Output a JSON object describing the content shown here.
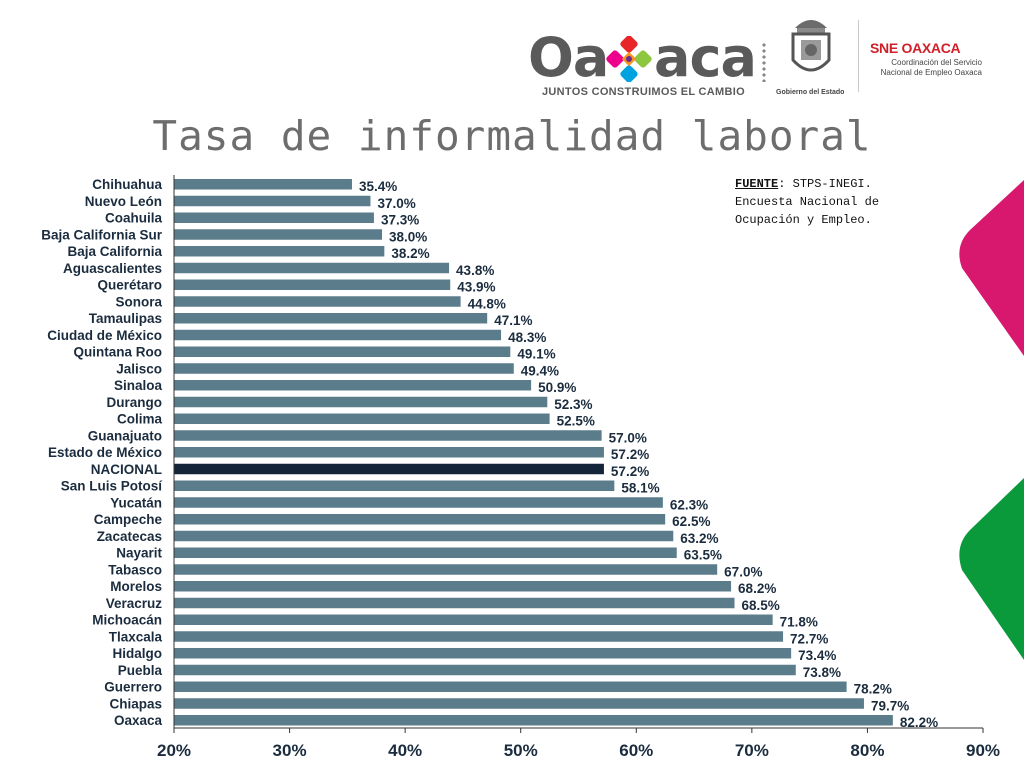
{
  "header": {
    "logo_text_left": "Oa",
    "logo_text_right": "aca",
    "tagline": "JUNTOS CONSTRUIMOS EL CAMBIO",
    "gobierno_label": "Gobierno del Estado",
    "sne_title": "SNE OAXACA",
    "sne_subtitle": "Coordinación del Servicio Nacional de Empleo Oaxaca"
  },
  "title": "Tasa de informalidad laboral",
  "source": {
    "label": "FUENTE",
    "text": ": STPS-INEGI. Encuesta Nacional de Ocupación y Empleo."
  },
  "colors": {
    "bar": "#5b7d8b",
    "highlight": "#14253a",
    "axis": "#333333",
    "accent_magenta": "#d8186f",
    "accent_green": "#0a9a3c"
  },
  "chart_data": {
    "type": "bar",
    "orientation": "horizontal",
    "title": "Tasa de informalidad laboral",
    "categories": [
      "Chihuahua",
      "Nuevo León",
      "Coahuila",
      "Baja California Sur",
      "Baja California",
      "Aguascalientes",
      "Querétaro",
      "Sonora",
      "Tamaulipas",
      "Ciudad de México",
      "Quintana Roo",
      "Jalisco",
      "Sinaloa",
      "Durango",
      "Colima",
      "Guanajuato",
      "Estado de México",
      "NACIONAL",
      "San Luis Potosí",
      "Yucatán",
      "Campeche",
      "Zacatecas",
      "Nayarit",
      "Tabasco",
      "Morelos",
      "Veracruz",
      "Michoacán",
      "Tlaxcala",
      "Hidalgo",
      "Puebla",
      "Guerrero",
      "Chiapas",
      "Oaxaca"
    ],
    "values": [
      35.4,
      37.0,
      37.3,
      38.0,
      38.2,
      43.8,
      43.9,
      44.8,
      47.1,
      48.3,
      49.1,
      49.4,
      50.9,
      52.3,
      52.5,
      57.0,
      57.2,
      57.2,
      58.1,
      62.3,
      62.5,
      63.2,
      63.5,
      67.0,
      68.2,
      68.5,
      71.8,
      72.7,
      73.4,
      73.8,
      78.2,
      79.7,
      82.2
    ],
    "value_labels": [
      "35.4%",
      "37.0%",
      "37.3%",
      "38.0%",
      "38.2%",
      "43.8%",
      "43.9%",
      "44.8%",
      "47.1%",
      "48.3%",
      "49.1%",
      "49.4%",
      "50.9%",
      "52.3%",
      "52.5%",
      "57.0%",
      "57.2%",
      "57.2%",
      "58.1%",
      "62.3%",
      "62.5%",
      "63.2%",
      "63.5%",
      "67.0%",
      "68.2%",
      "68.5%",
      "71.8%",
      "72.7%",
      "73.4%",
      "73.8%",
      "78.2%",
      "79.7%",
      "82.2%"
    ],
    "highlight_category": "NACIONAL",
    "xlim": [
      20,
      90
    ],
    "xticks": [
      20,
      30,
      40,
      50,
      60,
      70,
      80,
      90
    ],
    "xtick_labels": [
      "20%",
      "30%",
      "40%",
      "50%",
      "60%",
      "70%",
      "80%",
      "90%"
    ],
    "grid": false,
    "legend": "none"
  }
}
